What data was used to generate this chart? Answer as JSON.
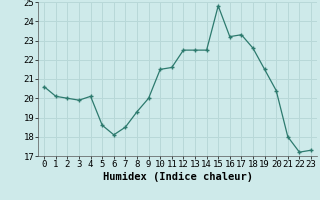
{
  "x": [
    0,
    1,
    2,
    3,
    4,
    5,
    6,
    7,
    8,
    9,
    10,
    11,
    12,
    13,
    14,
    15,
    16,
    17,
    18,
    19,
    20,
    21,
    22,
    23
  ],
  "y": [
    20.6,
    20.1,
    20.0,
    19.9,
    20.1,
    18.6,
    18.1,
    18.5,
    19.3,
    20.0,
    21.5,
    21.6,
    22.5,
    22.5,
    22.5,
    24.8,
    23.2,
    23.3,
    22.6,
    21.5,
    20.4,
    18.0,
    17.2,
    17.3
  ],
  "line_color": "#2d7a6e",
  "marker_color": "#2d7a6e",
  "bg_color": "#ceeaea",
  "grid_color": "#b8d8d8",
  "xlabel": "Humidex (Indice chaleur)",
  "ylim": [
    17,
    25
  ],
  "xlim_min": -0.5,
  "xlim_max": 23.5,
  "yticks": [
    17,
    18,
    19,
    20,
    21,
    22,
    23,
    24,
    25
  ],
  "xticks": [
    0,
    1,
    2,
    3,
    4,
    5,
    6,
    7,
    8,
    9,
    10,
    11,
    12,
    13,
    14,
    15,
    16,
    17,
    18,
    19,
    20,
    21,
    22,
    23
  ],
  "xlabel_fontsize": 7.5,
  "tick_fontsize": 6.5,
  "marker_size": 3.5,
  "line_width": 0.9
}
